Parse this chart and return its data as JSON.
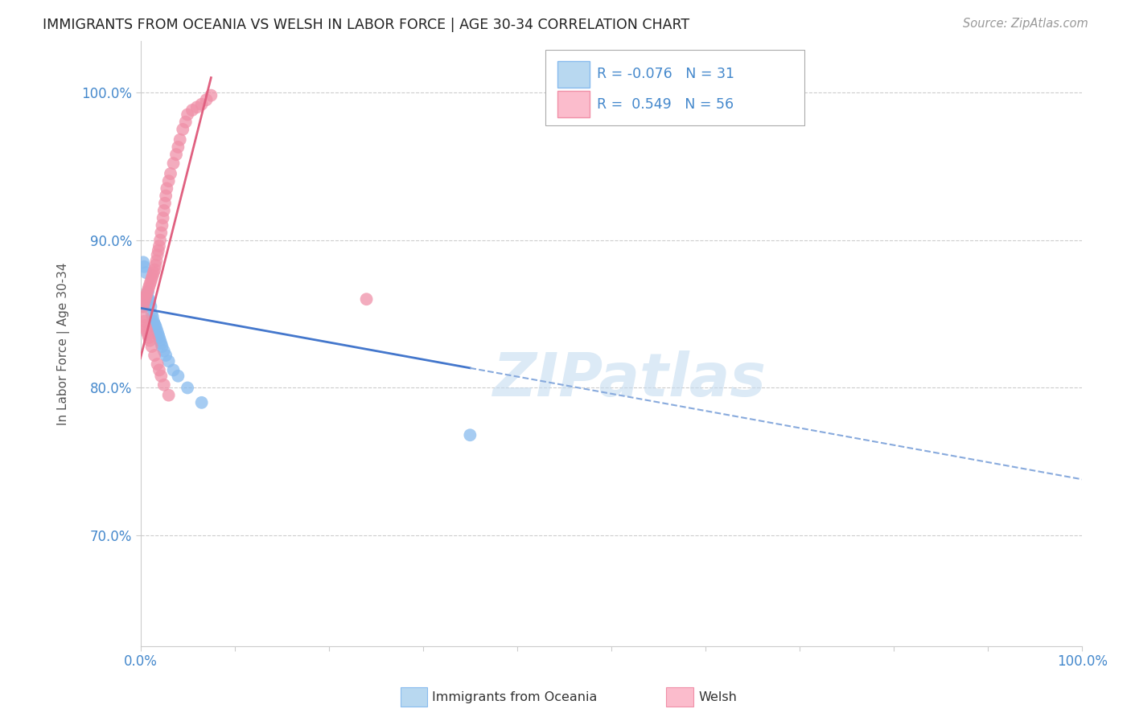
{
  "title": "IMMIGRANTS FROM OCEANIA VS WELSH IN LABOR FORCE | AGE 30-34 CORRELATION CHART",
  "source": "Source: ZipAtlas.com",
  "ylabel": "In Labor Force | Age 30-34",
  "xlim": [
    0.0,
    1.0
  ],
  "ylim": [
    0.625,
    1.035
  ],
  "yticks": [
    0.7,
    0.8,
    0.9,
    1.0
  ],
  "ytick_labels": [
    "70.0%",
    "80.0%",
    "90.0%",
    "100.0%"
  ],
  "xticks": [
    0.0,
    0.1,
    0.2,
    0.3,
    0.4,
    0.5,
    0.6,
    0.7,
    0.8,
    0.9,
    1.0
  ],
  "xtick_labels": [
    "0.0%",
    "",
    "",
    "",
    "",
    "",
    "",
    "",
    "",
    "",
    "100.0%"
  ],
  "background_color": "#ffffff",
  "grid_color": "#cccccc",
  "blue_color": "#88bbee",
  "pink_color": "#f090a8",
  "legend_blue_fill": "#b8d8f0",
  "legend_pink_fill": "#fbbccc",
  "blue_R": "-0.076",
  "blue_N": "31",
  "pink_R": "0.549",
  "pink_N": "56",
  "axis_color": "#4488cc",
  "watermark": "ZIPatlas",
  "oceania_x": [
    0.003,
    0.005,
    0.006,
    0.007,
    0.008,
    0.009,
    0.01,
    0.011,
    0.012,
    0.013,
    0.014,
    0.015,
    0.016,
    0.017,
    0.018,
    0.019,
    0.02,
    0.021,
    0.022,
    0.023,
    0.025,
    0.027,
    0.03,
    0.035,
    0.04,
    0.05,
    0.065,
    0.003,
    0.004,
    0.006,
    0.35
  ],
  "oceania_y": [
    0.855,
    0.86,
    0.858,
    0.862,
    0.865,
    0.86,
    0.858,
    0.855,
    0.85,
    0.848,
    0.845,
    0.843,
    0.842,
    0.84,
    0.838,
    0.836,
    0.834,
    0.832,
    0.83,
    0.828,
    0.825,
    0.822,
    0.818,
    0.812,
    0.808,
    0.8,
    0.79,
    0.885,
    0.882,
    0.878,
    0.768
  ],
  "welsh_x": [
    0.003,
    0.004,
    0.005,
    0.006,
    0.007,
    0.008,
    0.009,
    0.01,
    0.011,
    0.012,
    0.013,
    0.014,
    0.015,
    0.016,
    0.017,
    0.018,
    0.019,
    0.02,
    0.021,
    0.022,
    0.023,
    0.024,
    0.025,
    0.026,
    0.027,
    0.028,
    0.03,
    0.032,
    0.035,
    0.038,
    0.04,
    0.042,
    0.045,
    0.048,
    0.05,
    0.055,
    0.06,
    0.065,
    0.07,
    0.075,
    0.003,
    0.004,
    0.005,
    0.006,
    0.007,
    0.008,
    0.009,
    0.01,
    0.012,
    0.015,
    0.018,
    0.02,
    0.022,
    0.025,
    0.03,
    0.24
  ],
  "welsh_y": [
    0.855,
    0.858,
    0.86,
    0.862,
    0.864,
    0.866,
    0.868,
    0.87,
    0.872,
    0.874,
    0.876,
    0.878,
    0.88,
    0.883,
    0.886,
    0.89,
    0.893,
    0.896,
    0.9,
    0.905,
    0.91,
    0.915,
    0.92,
    0.925,
    0.93,
    0.935,
    0.94,
    0.945,
    0.952,
    0.958,
    0.963,
    0.968,
    0.975,
    0.98,
    0.985,
    0.988,
    0.99,
    0.992,
    0.995,
    0.998,
    0.848,
    0.845,
    0.842,
    0.84,
    0.838,
    0.836,
    0.834,
    0.832,
    0.828,
    0.822,
    0.816,
    0.812,
    0.808,
    0.802,
    0.795,
    0.86
  ],
  "blue_trend_x0": 0.0,
  "blue_trend_y0": 0.854,
  "blue_trend_x1": 1.0,
  "blue_trend_y1": 0.738,
  "pink_trend_x0": 0.0,
  "pink_trend_y0": 0.82,
  "pink_trend_x1": 0.075,
  "pink_trend_y1": 1.01
}
